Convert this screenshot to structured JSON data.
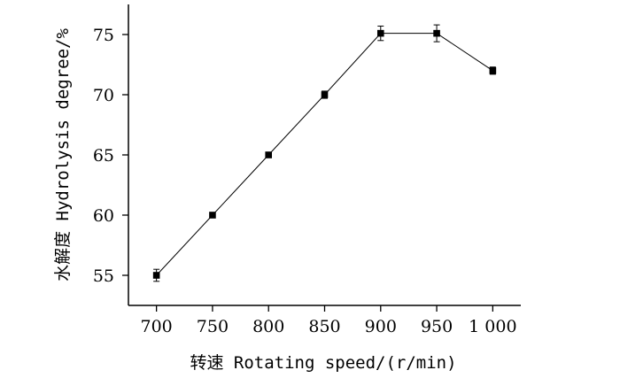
{
  "chart_data": {
    "type": "line",
    "xlabel": "转速 Rotating speed/(r/min)",
    "ylabel": "水解度 Hydrolysis degree/%",
    "x": [
      700,
      750,
      800,
      850,
      900,
      950,
      1000
    ],
    "x_tick_labels": [
      "700",
      "750",
      "800",
      "850",
      "900",
      "950",
      "1 000"
    ],
    "xlim": [
      675,
      1025
    ],
    "ylim": [
      52.5,
      77.5
    ],
    "y_ticks": [
      55,
      60,
      65,
      70,
      75
    ],
    "y_tick_labels": [
      "55",
      "60",
      "65",
      "70",
      "75"
    ],
    "series": [
      {
        "values": [
          55.0,
          60.0,
          65.0,
          70.0,
          75.1,
          75.1,
          72.0
        ],
        "errors": [
          0.5,
          0.1,
          0.1,
          0.3,
          0.6,
          0.7,
          0.3
        ],
        "marker": "square",
        "color": "#000000"
      }
    ],
    "grid": false,
    "legend": "none"
  }
}
